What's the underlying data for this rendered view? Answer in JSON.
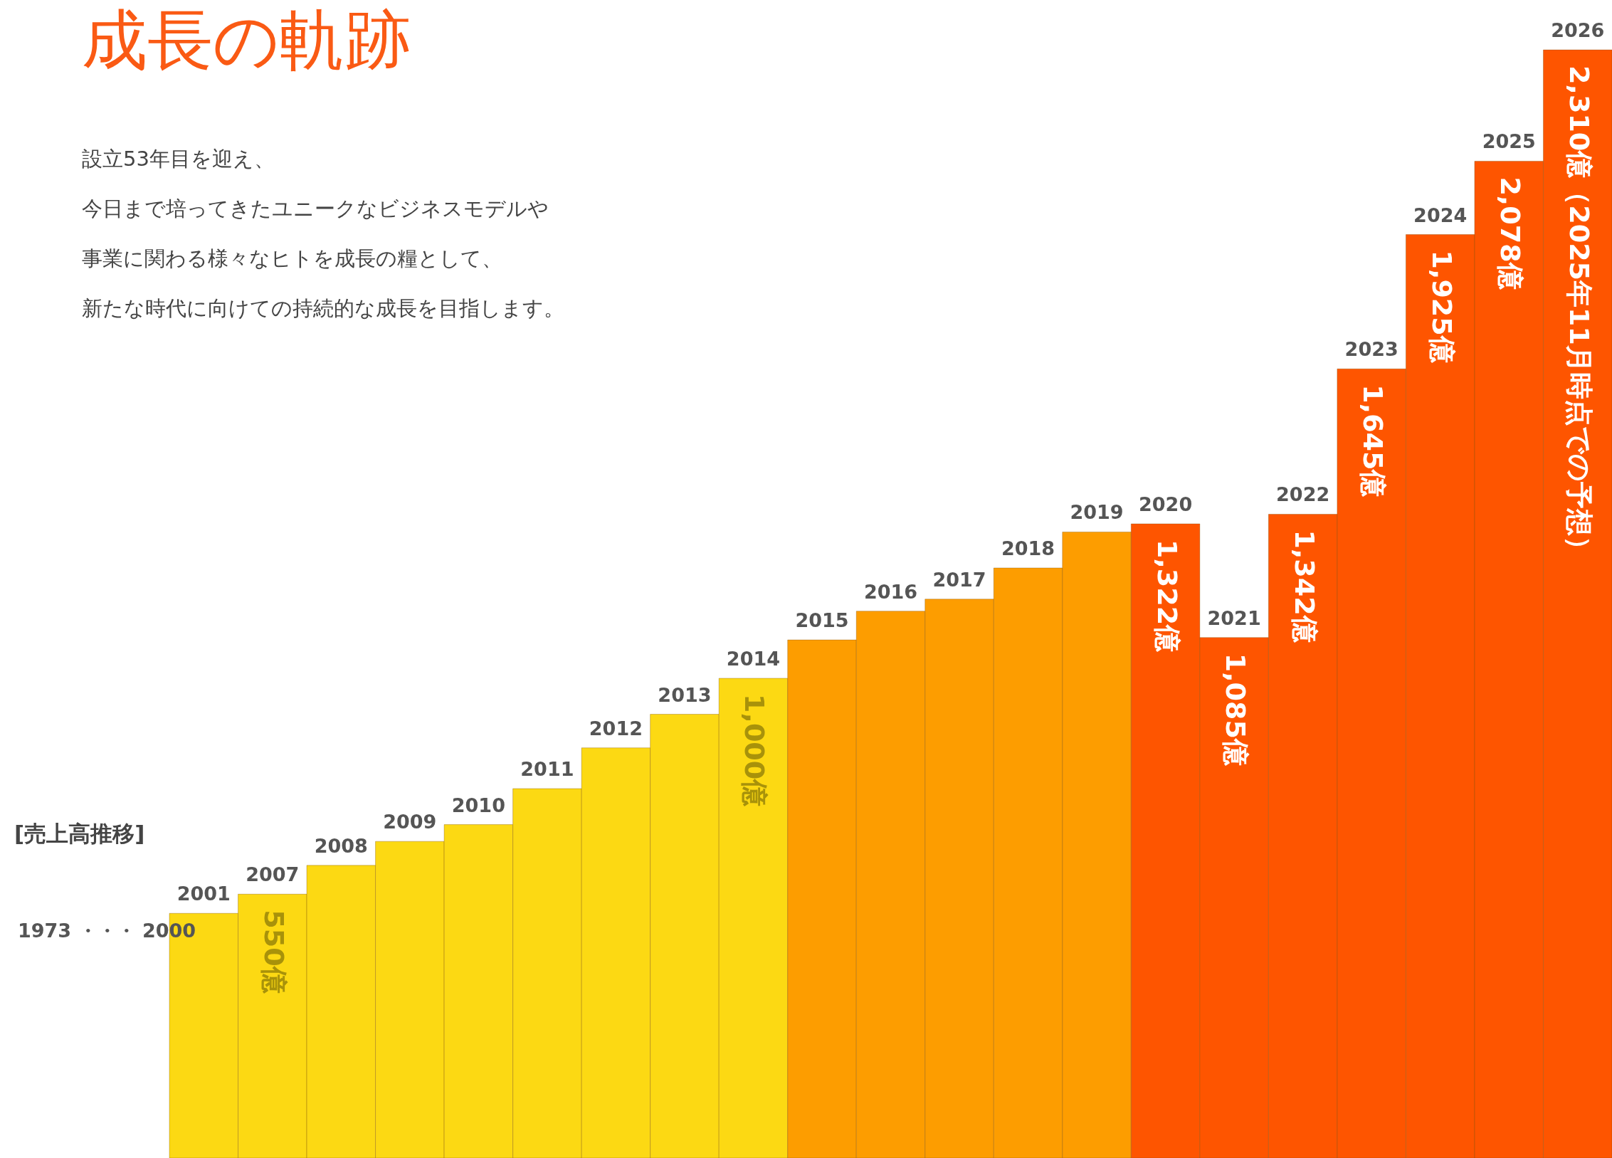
{
  "chart_data": {
    "type": "bar",
    "title": "成長の軌跡",
    "annotations": [
      "設立53年目を迎え、",
      "今日まで培ってきたユニークなビジネスモデルや",
      "事業に関わる様々なヒトを成長の糧として、",
      "新たな時代に向けての持続的な成長を目指します。",
      "[売上高推移]",
      "1973 ・・・ 2000"
    ],
    "categories": [
      "2001",
      "2007",
      "2008",
      "2009",
      "2010",
      "2011",
      "2012",
      "2013",
      "2014",
      "2015",
      "2016",
      "2017",
      "2018",
      "2019",
      "2020",
      "2021",
      "2022",
      "2023",
      "2024",
      "2025",
      "2026"
    ],
    "values": [
      510,
      550,
      610,
      660,
      695,
      770,
      855,
      925,
      1000,
      1080,
      1140,
      1165,
      1230,
      1305,
      1322,
      1085,
      1342,
      1645,
      1925,
      2078,
      2310
    ],
    "value_labels": [
      null,
      "550億",
      null,
      null,
      null,
      null,
      null,
      null,
      "1,000億",
      null,
      null,
      null,
      null,
      null,
      "1,322億",
      "1,085億",
      "1,342億",
      "1,645億",
      "1,925億",
      "2,078億",
      "2,310億（2025年11月時点での予想）"
    ],
    "colors": [
      "#fcd913",
      "#fcd913",
      "#fcd913",
      "#fcd913",
      "#fcd913",
      "#fcd913",
      "#fcd913",
      "#fcd913",
      "#fcd913",
      "#fd9d00",
      "#fd9d00",
      "#fd9d00",
      "#fd9d00",
      "#fd9d00",
      "#fe5500",
      "#fe5500",
      "#fe5500",
      "#fe5500",
      "#fe5500",
      "#fe5500",
      "#fe5500"
    ],
    "data_labels": false
  }
}
